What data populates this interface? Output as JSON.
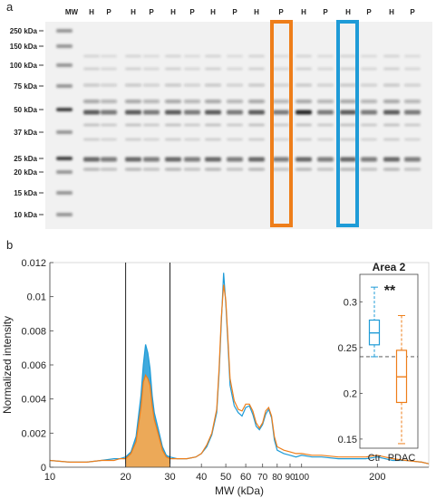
{
  "panel_a": {
    "label": "a",
    "mw_label": "MW",
    "lane_labels": [
      "H",
      "P",
      "H",
      "P",
      "H",
      "P",
      "H",
      "P",
      "H",
      "P",
      "H",
      "P",
      "H",
      "P",
      "H",
      "P"
    ],
    "mw_markers": [
      "250 kDa",
      "150 kDa",
      "100 kDa",
      "75 kDa",
      "50 kDa",
      "37 kDa",
      "25 kDa",
      "20 kDa",
      "15 kDa",
      "10 kDa"
    ],
    "highlight_colors": {
      "orange": "#ee7e1a",
      "blue": "#1e9bd7"
    }
  },
  "panel_b": {
    "label": "b",
    "chart_data": [
      {
        "type": "line",
        "title": "",
        "xlabel": "MW (kDa)",
        "ylabel": "Normalized intensity",
        "x_scale": "log",
        "xlim": [
          10,
          320
        ],
        "ylim": [
          0,
          0.012
        ],
        "x_ticks": [
          10,
          20,
          30,
          40,
          50,
          60,
          70,
          80,
          90,
          100,
          200
        ],
        "x_tick_labels": [
          "10",
          "20",
          "30",
          "40",
          "50",
          "60",
          "70",
          "80",
          "90",
          "100",
          "200"
        ],
        "y_ticks": [
          0,
          0.002,
          0.004,
          0.006,
          0.008,
          0.01,
          0.012
        ],
        "y_tick_labels": [
          "0",
          "0.002",
          "0.004",
          "0.006",
          "0.008",
          "0.01",
          "0.012"
        ],
        "vertical_lines": [
          20,
          30
        ],
        "shaded_region": [
          20,
          30
        ],
        "series": [
          {
            "color": "#1e9bd7",
            "x": [
              10,
              12,
              14,
              16,
              18,
              19,
              20,
              21,
              22,
              23,
              23.5,
              24,
              24.5,
              25,
              25.5,
              26,
              27,
              28,
              29,
              30,
              32,
              35,
              38,
              40,
              42,
              44,
              46,
              47,
              48,
              49,
              50,
              51,
              52,
              54,
              56,
              58,
              60,
              62,
              64,
              66,
              68,
              70,
              72,
              74,
              76,
              78,
              80,
              85,
              90,
              95,
              100,
              110,
              120,
              140,
              160,
              180,
              200,
              230,
              260,
              300,
              320
            ],
            "y": [
              0.0004,
              0.0003,
              0.0003,
              0.0004,
              0.0005,
              0.0005,
              0.0006,
              0.0009,
              0.0018,
              0.0042,
              0.006,
              0.0072,
              0.0067,
              0.0058,
              0.0042,
              0.0032,
              0.0022,
              0.0012,
              0.0007,
              0.0006,
              0.0005,
              0.0005,
              0.0006,
              0.0008,
              0.0012,
              0.0019,
              0.0032,
              0.0055,
              0.0085,
              0.0114,
              0.0096,
              0.0072,
              0.0048,
              0.0036,
              0.0032,
              0.003,
              0.0035,
              0.0036,
              0.0031,
              0.0024,
              0.0022,
              0.0025,
              0.0031,
              0.0034,
              0.0029,
              0.0016,
              0.001,
              0.0008,
              0.0007,
              0.0006,
              0.0007,
              0.0006,
              0.0006,
              0.0005,
              0.0005,
              0.0005,
              0.0006,
              0.0004,
              0.0004,
              0.0003,
              0.0002
            ]
          },
          {
            "color": "#ee7e1a",
            "x": [
              10,
              12,
              14,
              16,
              18,
              19,
              20,
              21,
              22,
              23,
              23.5,
              24,
              24.5,
              25,
              25.5,
              26,
              27,
              28,
              29,
              30,
              32,
              35,
              38,
              40,
              42,
              44,
              46,
              47,
              48,
              49,
              50,
              51,
              52,
              54,
              56,
              58,
              60,
              62,
              64,
              66,
              68,
              70,
              72,
              74,
              76,
              78,
              80,
              85,
              90,
              95,
              100,
              110,
              120,
              140,
              160,
              180,
              200,
              230,
              260,
              300,
              320
            ],
            "y": [
              0.0004,
              0.0003,
              0.0003,
              0.0004,
              0.0004,
              0.0005,
              0.0005,
              0.0008,
              0.0015,
              0.0035,
              0.005,
              0.0054,
              0.0052,
              0.0048,
              0.0036,
              0.0028,
              0.0019,
              0.001,
              0.0006,
              0.0005,
              0.0005,
              0.0005,
              0.0006,
              0.0008,
              0.0013,
              0.002,
              0.0034,
              0.0058,
              0.0088,
              0.0107,
              0.0098,
              0.0075,
              0.0052,
              0.0039,
              0.0034,
              0.0033,
              0.0037,
              0.0037,
              0.0033,
              0.0026,
              0.0023,
              0.0026,
              0.0033,
              0.0035,
              0.003,
              0.0018,
              0.0012,
              0.001,
              0.0009,
              0.0008,
              0.0008,
              0.0007,
              0.0007,
              0.0006,
              0.0006,
              0.0006,
              0.0007,
              0.0005,
              0.0004,
              0.0003,
              0.0002
            ]
          }
        ]
      },
      {
        "type": "box",
        "title": "Area 2",
        "categories": [
          "Ctr",
          "PDAC"
        ],
        "ylim": [
          0.14,
          0.33
        ],
        "y_ticks": [
          0.15,
          0.2,
          0.25,
          0.3
        ],
        "y_tick_labels": [
          "0.15",
          "0.2",
          "0.25",
          "0.3"
        ],
        "annotation": "**",
        "reference_line": 0.24,
        "boxes": [
          {
            "name": "Ctr",
            "color": "#1e9bd7",
            "whisker_low": 0.24,
            "q1": 0.253,
            "median": 0.266,
            "q3": 0.28,
            "whisker_high": 0.316
          },
          {
            "name": "PDAC",
            "color": "#ee7e1a",
            "whisker_low": 0.145,
            "q1": 0.19,
            "median": 0.218,
            "q3": 0.247,
            "whisker_high": 0.285
          }
        ]
      }
    ]
  }
}
